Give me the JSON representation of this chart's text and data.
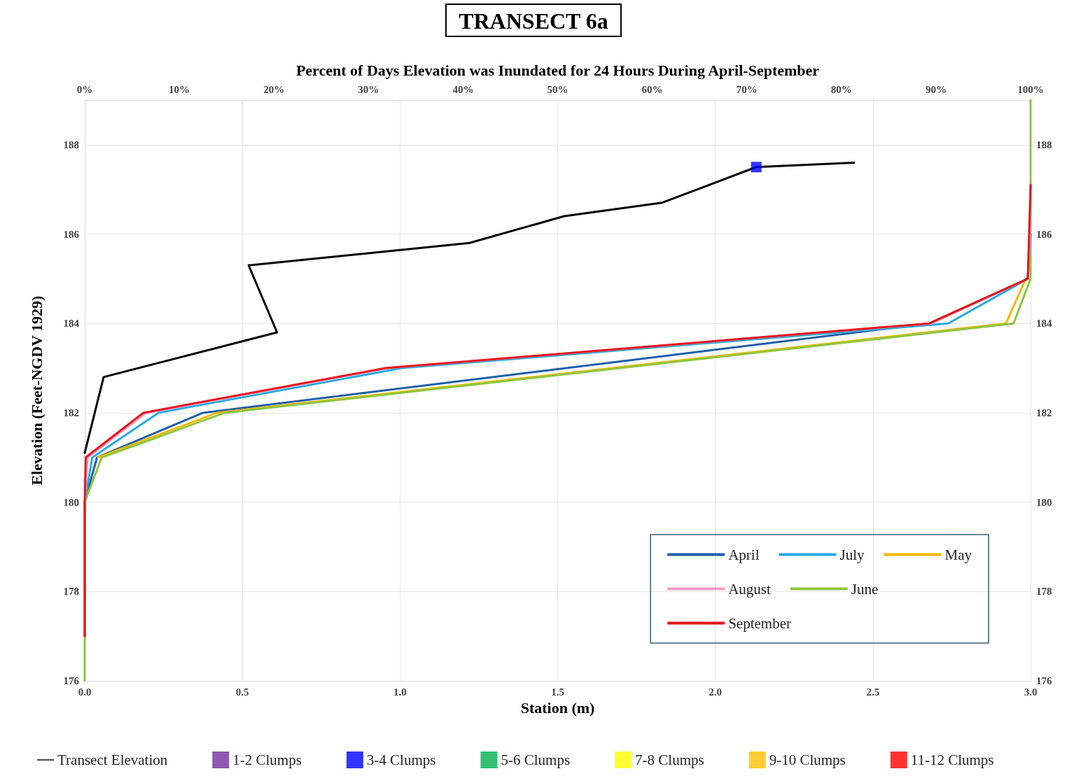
{
  "chart_data": {
    "type": "line",
    "title": "TRANSECT 6a",
    "x2label": "Percent of Days Elevation was Inundated for 24 Hours During April-September",
    "xlabel": "Station (m)",
    "ylabel": "Elevation (Feet-NGDV 1929)",
    "xlim": [
      0,
      3
    ],
    "xticks": [
      {
        "value": 0,
        "label": "0.0"
      },
      0.5,
      {
        "value": 1,
        "label": "1.0"
      },
      1.5,
      {
        "value": 2,
        "label": "2.0"
      },
      2.5,
      {
        "value": 3,
        "label": "3.0"
      }
    ],
    "x2lim": [
      0,
      100
    ],
    "x2ticks": [
      {
        "value": 0,
        "label": "0%"
      },
      {
        "value": 10,
        "label": "10%"
      },
      {
        "value": 20,
        "label": "20%"
      },
      {
        "value": 30,
        "label": "30%"
      },
      {
        "value": 40,
        "label": "40%"
      },
      {
        "value": 50,
        "label": "50%"
      },
      {
        "value": 60,
        "label": "60%"
      },
      {
        "value": 70,
        "label": "70%"
      },
      {
        "value": 80,
        "label": "80%"
      },
      {
        "value": 90,
        "label": "90%"
      },
      {
        "value": 100,
        "label": "100%"
      }
    ],
    "ylim": [
      176,
      189
    ],
    "yticks": [
      176,
      178,
      180,
      182,
      184,
      186,
      188
    ],
    "y2lim": [
      176,
      189
    ],
    "y2ticks": [
      176,
      178,
      180,
      182,
      184,
      186,
      188
    ],
    "grid": true,
    "legend": "bottom",
    "marker": "none",
    "line_style": "solid",
    "series": [
      {
        "name": "April",
        "color": "#1f5fa8",
        "axis": "x2",
        "x": [
          0,
          0,
          1.3,
          12.5,
          89.3,
          99.7,
          100
        ],
        "values": [
          177,
          180,
          181,
          182,
          184,
          185,
          186
        ]
      },
      {
        "name": "May",
        "color": "#f5b800",
        "axis": "x2",
        "x": [
          1.4,
          14,
          97.4,
          99.5
        ],
        "values": [
          181,
          182,
          184,
          185
        ]
      },
      {
        "name": "June",
        "color": "#8dc63f",
        "axis": "x2",
        "x": [
          0,
          0,
          1.8,
          14.8,
          98.2,
          100,
          100
        ],
        "values": [
          176,
          180,
          181,
          182,
          184,
          185,
          189
        ]
      },
      {
        "name": "July",
        "color": "#29a9e0",
        "axis": "x2",
        "x": [
          0,
          0.8,
          7.8,
          33.5,
          91.3,
          99.7,
          100
        ],
        "values": [
          180,
          181,
          182,
          183,
          184,
          185,
          186
        ]
      },
      {
        "name": "August",
        "color": "#f49ac1",
        "axis": "x2",
        "x": [
          0,
          0.3,
          6.5,
          32,
          89.5,
          99.7,
          100
        ],
        "values": [
          180,
          181,
          182,
          183,
          184,
          185,
          186.3
        ]
      },
      {
        "name": "September",
        "color": "#e8141b",
        "axis": "x2",
        "x": [
          0,
          0,
          0.1,
          6.2,
          31.8,
          89.3,
          99.7,
          100
        ],
        "values": [
          177,
          180,
          181,
          182,
          183,
          184,
          185,
          187.1
        ]
      },
      {
        "name": "Transect Elevation",
        "color": "#000000",
        "x": [
          0,
          0.06,
          0.61,
          0.52,
          1.22,
          1.52,
          1.83,
          2.13,
          2.44
        ],
        "values": [
          181.1,
          182.8,
          183.8,
          185.3,
          185.8,
          186.4,
          186.7,
          187.5,
          187.6
        ]
      },
      {
        "name": "1-2 Clumps",
        "type": "scatter",
        "marker": "square",
        "color": "#7030a0"
      },
      {
        "name": "3-4 Clumps",
        "type": "scatter",
        "marker": "square",
        "color": "#0000ff",
        "x": [
          2.13
        ],
        "values": [
          187.5
        ]
      },
      {
        "name": "5-6 Clumps",
        "type": "scatter",
        "marker": "square",
        "color": "#00b050"
      },
      {
        "name": "7-8 Clumps",
        "type": "scatter",
        "marker": "square",
        "color": "#ffff00"
      },
      {
        "name": "9-10 Clumps",
        "type": "scatter",
        "marker": "square",
        "color": "#ffc000"
      },
      {
        "name": "11-12 Clumps",
        "type": "scatter",
        "marker": "square",
        "color": "#ff0000"
      }
    ]
  }
}
